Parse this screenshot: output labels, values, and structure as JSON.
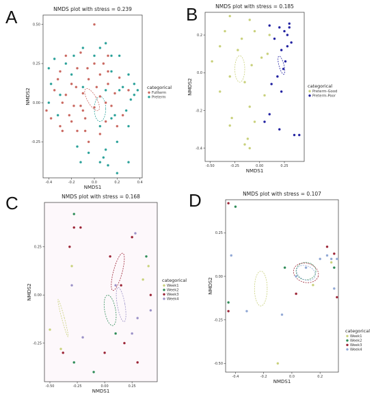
{
  "chart_data": [
    {
      "type": "scatter",
      "panel": "A",
      "title": "NMDS plot with stress = 0.239",
      "xlabel": "NMDS1",
      "ylabel": "NMDS2",
      "xlim": [
        -0.45,
        0.42
      ],
      "ylim": [
        -0.48,
        0.56
      ],
      "xticks": [
        -0.4,
        -0.2,
        0.0,
        0.2,
        0.4
      ],
      "xticklabels": [
        "-0.4",
        "-0.2",
        "0.0",
        "0.2",
        "0.4"
      ],
      "yticks": [
        -0.25,
        0.0,
        0.25,
        0.5
      ],
      "yticklabels": [
        "-0.25",
        "0.00",
        "0.25",
        "0.50"
      ],
      "legend": {
        "title": "categorical",
        "position": "right"
      },
      "series": [
        {
          "name": "Fullterm",
          "color": "#c9675f",
          "points": [
            [
              0.0,
              0.5
            ],
            [
              -0.25,
              0.3
            ],
            [
              0.12,
              0.3
            ],
            [
              -0.3,
              0.2
            ],
            [
              -0.15,
              0.22
            ],
            [
              0.05,
              0.18
            ],
            [
              -0.2,
              0.12
            ],
            [
              -0.05,
              0.15
            ],
            [
              0.12,
              0.12
            ],
            [
              0.22,
              0.16
            ],
            [
              -0.35,
              0.08
            ],
            [
              -0.1,
              0.06
            ],
            [
              0.05,
              0.04
            ],
            [
              0.18,
              0.06
            ],
            [
              -0.28,
              0.0
            ],
            [
              -0.18,
              -0.02
            ],
            [
              0.0,
              -0.03
            ],
            [
              0.15,
              -0.02
            ],
            [
              -0.38,
              -0.1
            ],
            [
              -0.22,
              -0.08
            ],
            [
              -0.08,
              -0.1
            ],
            [
              0.1,
              -0.12
            ],
            [
              -0.3,
              -0.15
            ],
            [
              -0.15,
              -0.18
            ],
            [
              0.05,
              -0.2
            ],
            [
              -0.05,
              -0.25
            ],
            [
              0.25,
              -0.08
            ],
            [
              -0.12,
              0.32
            ],
            [
              0.08,
              0.25
            ],
            [
              -0.32,
              0.15
            ],
            [
              -0.2,
              -0.12
            ],
            [
              0.02,
              0.1
            ],
            [
              -0.42,
              -0.05
            ],
            [
              -0.1,
              -0.05
            ],
            [
              0.2,
              -0.15
            ],
            [
              -0.25,
              0.05
            ],
            [
              0.3,
              0.08
            ],
            [
              0.1,
              0.0
            ],
            [
              -0.06,
              0.22
            ],
            [
              -0.16,
              0.1
            ],
            [
              0.12,
              0.2
            ],
            [
              -0.28,
              -0.18
            ],
            [
              -0.08,
              -0.18
            ],
            [
              0.0,
              0.25
            ],
            [
              -0.12,
              -0.02
            ]
          ],
          "ellipse": {
            "cx": -0.02,
            "cy": 0.02,
            "rx": 0.04,
            "ry": 0.08,
            "angle": 30
          }
        },
        {
          "name": "Preterm",
          "color": "#2aa199",
          "points": [
            [
              0.1,
              0.38
            ],
            [
              -0.1,
              0.35
            ],
            [
              -0.35,
              0.28
            ],
            [
              -0.25,
              0.25
            ],
            [
              0.0,
              0.3
            ],
            [
              0.22,
              0.3
            ],
            [
              -0.4,
              0.22
            ],
            [
              -0.2,
              0.18
            ],
            [
              0.15,
              0.2
            ],
            [
              0.3,
              0.18
            ],
            [
              -0.38,
              0.12
            ],
            [
              -0.1,
              0.1
            ],
            [
              0.25,
              0.1
            ],
            [
              0.35,
              0.12
            ],
            [
              -0.3,
              0.05
            ],
            [
              0.32,
              0.02
            ],
            [
              0.38,
              0.08
            ],
            [
              -0.4,
              0.0
            ],
            [
              0.28,
              -0.05
            ],
            [
              0.18,
              -0.08
            ],
            [
              -0.32,
              -0.08
            ],
            [
              0.3,
              -0.15
            ],
            [
              0.05,
              -0.15
            ],
            [
              -0.15,
              -0.28
            ],
            [
              0.1,
              -0.3
            ],
            [
              0.2,
              -0.25
            ],
            [
              -0.05,
              -0.32
            ],
            [
              0.05,
              -0.38
            ],
            [
              0.3,
              -0.38
            ],
            [
              0.2,
              -0.45
            ],
            [
              -0.12,
              -0.38
            ],
            [
              0.12,
              -0.4
            ],
            [
              0.08,
              -0.35
            ],
            [
              0.22,
              0.08
            ],
            [
              0.1,
              0.08
            ],
            [
              0.05,
              0.35
            ],
            [
              -0.18,
              0.3
            ],
            [
              0.15,
              -0.1
            ],
            [
              0.35,
              0.05
            ],
            [
              0.15,
              0.3
            ]
          ],
          "ellipse": {
            "cx": 0.05,
            "cy": -0.04,
            "rx": 0.05,
            "ry": 0.08,
            "angle": 0
          }
        }
      ]
    },
    {
      "type": "scatter",
      "panel": "B",
      "title": "NMDS plot with stress = 0.185",
      "xlabel": "NMDS1",
      "ylabel": "NMDS2",
      "xlim": [
        -0.55,
        0.45
      ],
      "ylim": [
        -0.47,
        0.32
      ],
      "xticks": [
        -0.5,
        -0.25,
        0.0,
        0.25
      ],
      "xticklabels": [
        "-0.50",
        "-0.25",
        "0.00",
        "0.25"
      ],
      "yticks": [
        -0.4,
        -0.2,
        0.0,
        0.2
      ],
      "yticklabels": [
        "-0.4",
        "-0.2",
        "0.0",
        "0.2"
      ],
      "legend": {
        "title": "categorical",
        "position": "right"
      },
      "series": [
        {
          "name": "Preterm-Good",
          "color": "#c8d07a",
          "points": [
            [
              -0.3,
              0.3
            ],
            [
              -0.1,
              0.28
            ],
            [
              -0.35,
              0.22
            ],
            [
              -0.05,
              0.22
            ],
            [
              -0.18,
              0.18
            ],
            [
              0.1,
              0.2
            ],
            [
              -0.4,
              0.14
            ],
            [
              -0.22,
              0.12
            ],
            [
              0.02,
              0.08
            ],
            [
              -0.48,
              0.06
            ],
            [
              -0.08,
              0.04
            ],
            [
              -0.3,
              -0.02
            ],
            [
              -0.15,
              -0.05
            ],
            [
              -0.4,
              -0.1
            ],
            [
              -0.1,
              -0.18
            ],
            [
              -0.28,
              -0.24
            ],
            [
              -0.3,
              -0.28
            ],
            [
              -0.12,
              -0.35
            ],
            [
              -0.15,
              -0.38
            ],
            [
              -0.1,
              -0.4
            ],
            [
              0.05,
              -0.12
            ],
            [
              -0.05,
              -0.26
            ],
            [
              0.08,
              0.1
            ]
          ],
          "ellipse": {
            "cx": -0.2,
            "cy": 0.02,
            "rx": 0.05,
            "ry": 0.07,
            "angle": 0
          }
        },
        {
          "name": "Preterm-Poor",
          "color": "#1f1fa0",
          "points": [
            [
              0.1,
              0.25
            ],
            [
              0.2,
              0.24
            ],
            [
              0.25,
              0.22
            ],
            [
              0.3,
              0.24
            ],
            [
              0.28,
              0.2
            ],
            [
              0.15,
              0.18
            ],
            [
              0.32,
              0.16
            ],
            [
              0.22,
              0.12
            ],
            [
              0.26,
              0.06
            ],
            [
              0.24,
              0.02
            ],
            [
              0.18,
              -0.02
            ],
            [
              0.12,
              -0.06
            ],
            [
              0.22,
              -0.1
            ],
            [
              0.1,
              -0.22
            ],
            [
              0.05,
              -0.26
            ],
            [
              0.2,
              -0.3
            ],
            [
              0.35,
              -0.33
            ],
            [
              0.4,
              -0.33
            ],
            [
              0.28,
              0.14
            ],
            [
              0.3,
              0.26
            ]
          ],
          "ellipse": {
            "cx": 0.22,
            "cy": 0.04,
            "rx": 0.025,
            "ry": 0.05,
            "angle": 15
          }
        }
      ]
    },
    {
      "type": "scatter",
      "panel": "C",
      "title": "NMDS plot with stress = 0.168",
      "xlabel": "NMDS1",
      "ylabel": "NMDS2",
      "xlim": [
        -0.55,
        0.48
      ],
      "ylim": [
        -0.45,
        0.48
      ],
      "xticks": [
        -0.5,
        -0.25,
        0.0,
        0.25
      ],
      "xticklabels": [
        "-0.50",
        "-0.25",
        "0.00",
        "0.25"
      ],
      "yticks": [
        -0.25,
        0.0,
        0.25
      ],
      "yticklabels": [
        "-0.25",
        "0.00",
        "0.25"
      ],
      "legend": {
        "title": "categorical",
        "position": "right"
      },
      "series": [
        {
          "name": "Week1",
          "color": "#c8d07a",
          "points": [
            [
              -0.3,
              0.15
            ],
            [
              -0.4,
              -0.28
            ],
            [
              -0.5,
              -0.18
            ],
            [
              0.35,
              0.08
            ],
            [
              0.4,
              0.15
            ]
          ],
          "ellipse": {
            "cx": -0.38,
            "cy": -0.12,
            "rx": 0.012,
            "ry": 0.1,
            "angle": 15
          }
        },
        {
          "name": "Week2",
          "color": "#2e8b57",
          "points": [
            [
              -0.28,
              0.42
            ],
            [
              0.1,
              -0.2
            ],
            [
              -0.28,
              -0.35
            ],
            [
              -0.1,
              -0.4
            ],
            [
              0.38,
              0.2
            ]
          ],
          "ellipse": {
            "cx": 0.05,
            "cy": -0.08,
            "rx": 0.05,
            "ry": 0.08,
            "angle": 10
          }
        },
        {
          "name": "Week3",
          "color": "#9b2335",
          "points": [
            [
              -0.22,
              0.35
            ],
            [
              -0.28,
              0.35
            ],
            [
              0.05,
              0.2
            ],
            [
              0.25,
              0.3
            ],
            [
              -0.32,
              0.25
            ],
            [
              0.15,
              0.05
            ],
            [
              0.42,
              0.0
            ],
            [
              0.18,
              -0.25
            ],
            [
              0.0,
              -0.3
            ],
            [
              0.3,
              -0.35
            ],
            [
              -0.38,
              -0.3
            ]
          ],
          "ellipse": {
            "cx": 0.12,
            "cy": 0.12,
            "rx": 0.04,
            "ry": 0.1,
            "angle": -15
          }
        },
        {
          "name": "Week4",
          "color": "#9a8fc6",
          "points": [
            [
              0.28,
              0.32
            ],
            [
              -0.3,
              0.05
            ],
            [
              0.3,
              -0.12
            ],
            [
              0.1,
              0.05
            ],
            [
              -0.2,
              -0.22
            ],
            [
              0.42,
              -0.08
            ],
            [
              0.25,
              -0.2
            ]
          ],
          "ellipse": {
            "cx": 0.15,
            "cy": -0.05,
            "rx": 0.035,
            "ry": 0.09,
            "angle": 10
          }
        }
      ]
    },
    {
      "type": "scatter",
      "panel": "D",
      "title": "NMDS plot with stress = 0.107",
      "xlabel": "NMDS1",
      "ylabel": "NMDS2",
      "xlim": [
        -0.47,
        0.33
      ],
      "ylim": [
        -0.55,
        0.44
      ],
      "xticks": [
        -0.4,
        -0.2,
        0.0,
        0.2
      ],
      "xticklabels": [
        "-0.4",
        "-0.2",
        "0.0",
        "0.2"
      ],
      "yticks": [
        -0.5,
        -0.25,
        0.0,
        0.25
      ],
      "yticklabels": [
        "-0.50",
        "-0.25",
        "0.00",
        "0.25"
      ],
      "legend": {
        "title": "categorical",
        "position": "right"
      },
      "series": [
        {
          "name": "Week1",
          "color": "#c8d07a",
          "points": [
            [
              -0.1,
              -0.5
            ],
            [
              0.15,
              -0.05
            ],
            [
              0.28,
              0.08
            ]
          ],
          "ellipse": {
            "cx": -0.22,
            "cy": -0.07,
            "rx": 0.045,
            "ry": 0.1,
            "angle": 0
          }
        },
        {
          "name": "Week2",
          "color": "#2e8b57",
          "points": [
            [
              -0.4,
              0.4
            ],
            [
              -0.45,
              -0.15
            ],
            [
              0.3,
              0.05
            ],
            [
              -0.05,
              0.05
            ]
          ],
          "ellipse": {
            "cx": 0.1,
            "cy": 0.03,
            "rx": 0.07,
            "ry": 0.05,
            "angle": 0
          }
        },
        {
          "name": "Week3",
          "color": "#9b2335",
          "points": [
            [
              -0.45,
              0.42
            ],
            [
              -0.45,
              -0.2
            ],
            [
              0.25,
              0.17
            ],
            [
              0.3,
              0.13
            ],
            [
              0.03,
              -0.1
            ],
            [
              0.32,
              -0.12
            ]
          ],
          "ellipse": {
            "cx": 0.1,
            "cy": 0.02,
            "rx": 0.09,
            "ry": 0.055,
            "angle": -15
          }
        },
        {
          "name": "Week4",
          "color": "#8fa7d4",
          "points": [
            [
              -0.43,
              0.12
            ],
            [
              0.25,
              0.12
            ],
            [
              0.28,
              0.1
            ],
            [
              0.32,
              0.1
            ],
            [
              0.03,
              0.0
            ],
            [
              0.2,
              0.1
            ],
            [
              0.3,
              -0.07
            ],
            [
              -0.32,
              -0.2
            ],
            [
              0.1,
              0.05
            ],
            [
              -0.07,
              -0.22
            ]
          ],
          "ellipse": {
            "cx": 0.1,
            "cy": 0.02,
            "rx": 0.07,
            "ry": 0.04,
            "angle": -25
          }
        }
      ]
    }
  ]
}
